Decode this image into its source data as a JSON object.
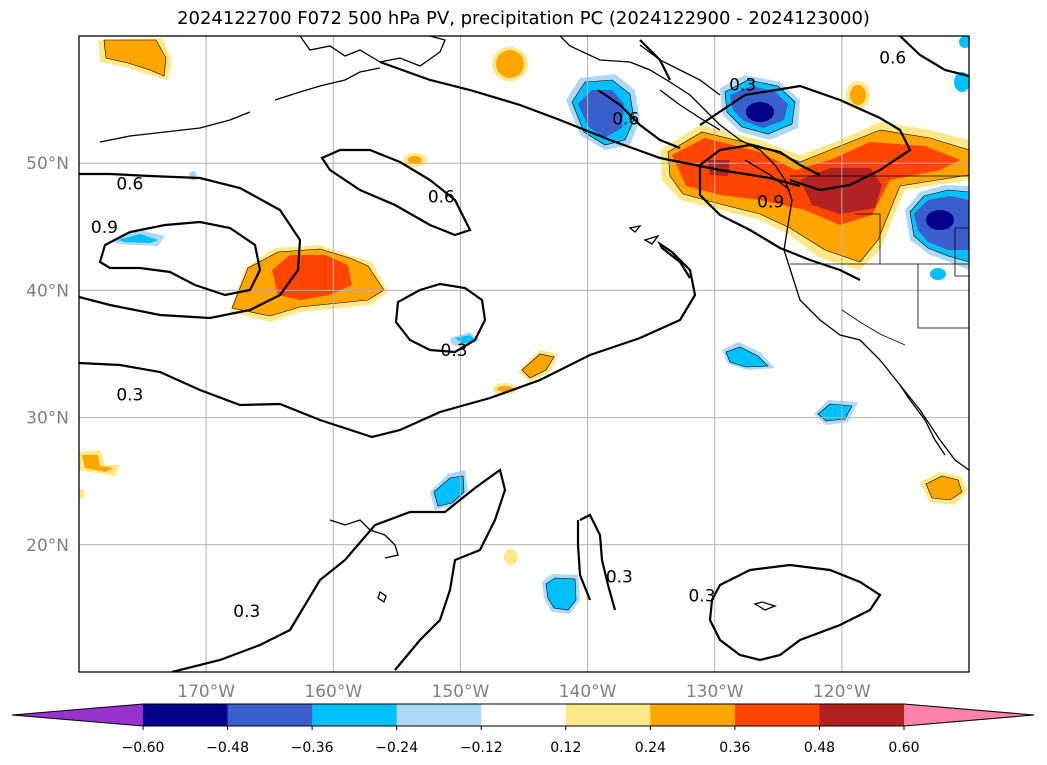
{
  "chart_data": {
    "type": "contour_map",
    "title": "2024122700 F072 500 hPa PV, precipitation PC (2024122900 - 2024123000)",
    "projection": "PlateCarree",
    "lon_range": [
      -180,
      -110
    ],
    "lat_range": [
      10,
      60
    ],
    "grid": true,
    "lat_labels": [
      "20°N",
      "30°N",
      "40°N",
      "50°N"
    ],
    "lat_values": [
      20,
      30,
      40,
      50
    ],
    "lon_labels": [
      "170°W",
      "160°W",
      "150°W",
      "140°W",
      "130°W",
      "120°W"
    ],
    "lon_values": [
      -170,
      -160,
      -150,
      -140,
      -130,
      -120
    ],
    "pv_contour_labels": [
      {
        "text": "0.6",
        "lon": -176,
        "lat": 48.4
      },
      {
        "text": "0.9",
        "lon": -178,
        "lat": 45
      },
      {
        "text": "0.6",
        "lon": -151.5,
        "lat": 47.4
      },
      {
        "text": "0.6",
        "lon": -137,
        "lat": 53.5
      },
      {
        "text": "0.3",
        "lon": -150.5,
        "lat": 35.3
      },
      {
        "text": "0.3",
        "lon": -176,
        "lat": 31.8
      },
      {
        "text": "0.3",
        "lon": -127.8,
        "lat": 56.2
      },
      {
        "text": "0.9",
        "lon": -125.6,
        "lat": 47
      },
      {
        "text": "0.6",
        "lon": -116,
        "lat": 58.3
      },
      {
        "text": "0.3",
        "lon": -137.5,
        "lat": 17.5
      },
      {
        "text": "0.3",
        "lon": -131,
        "lat": 16
      },
      {
        "text": "0.3",
        "lon": -166.8,
        "lat": 14.8
      }
    ],
    "precip_pc_colorbar": {
      "ticks": [
        "−0.60",
        "−0.48",
        "−0.36",
        "−0.24",
        "−0.12",
        "0.12",
        "0.24",
        "0.36",
        "0.48",
        "0.60"
      ],
      "colors": [
        "#9932cc",
        "#00008b",
        "#3a5fcd",
        "#00bfff",
        "#add8f7",
        "#ffffff",
        "#ffe88a",
        "#ffa500",
        "#ff4500",
        "#b22222",
        "#ff82ab"
      ],
      "extend": "both"
    }
  }
}
